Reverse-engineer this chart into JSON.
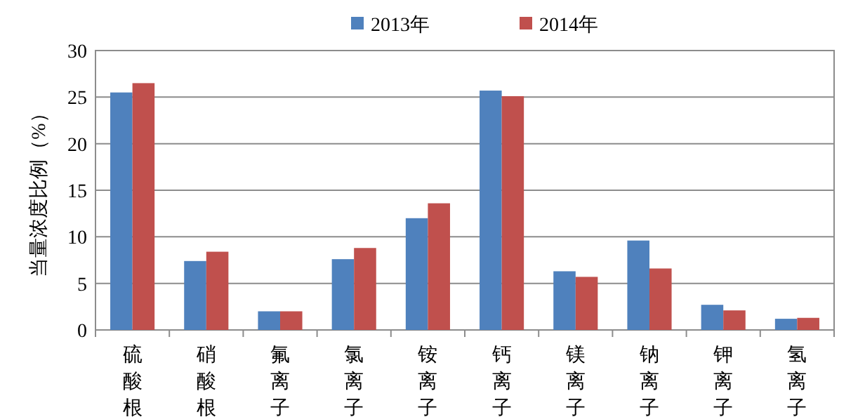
{
  "chart_data": {
    "type": "bar",
    "ylabel": "当量浓度比例（%）",
    "categories": [
      "硫酸根",
      "硝酸根",
      "氟离子",
      "氯离子",
      "铵离子",
      "钙离子",
      "镁离子",
      "钠离子",
      "钾离子",
      "氢离子"
    ],
    "series": [
      {
        "name": "2013年",
        "color": "#4f81bd",
        "values": [
          25.5,
          7.4,
          2.0,
          7.6,
          12.0,
          25.7,
          6.3,
          9.6,
          2.7,
          1.2
        ]
      },
      {
        "name": "2014年",
        "color": "#c0504d",
        "values": [
          26.5,
          8.4,
          2.0,
          8.8,
          13.6,
          25.1,
          5.7,
          6.6,
          2.1,
          1.3
        ]
      }
    ],
    "ylim": [
      0,
      30
    ],
    "yticks": [
      0,
      5,
      10,
      15,
      20,
      25,
      30
    ],
    "grid": "y",
    "legend": "top"
  }
}
